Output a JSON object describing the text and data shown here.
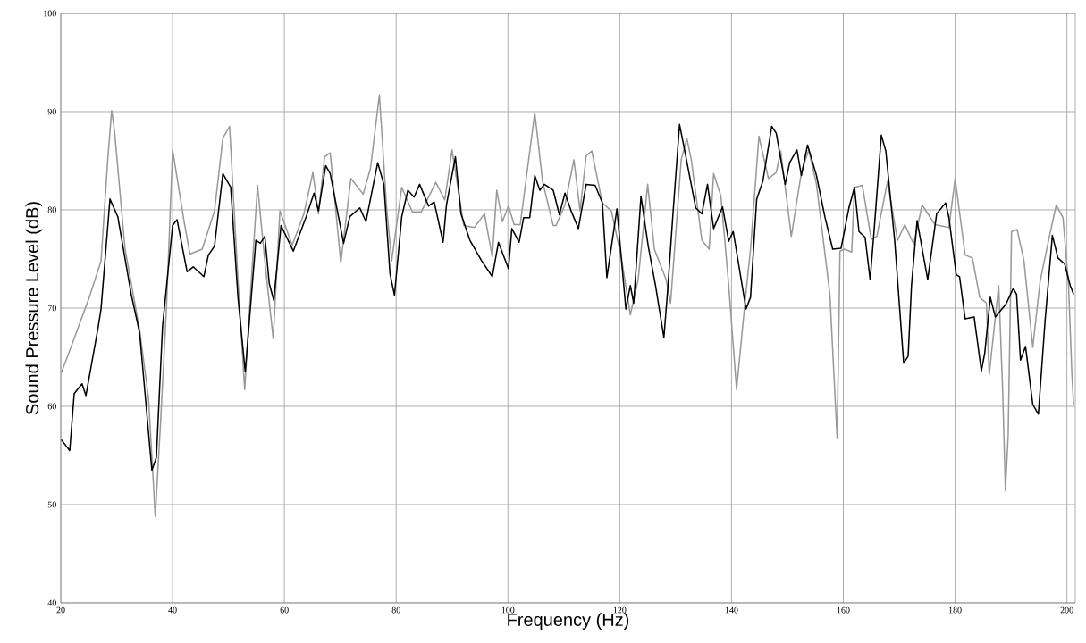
{
  "chart_data": {
    "type": "line",
    "xlabel": "Frequency (Hz)",
    "ylabel": "Sound Pressure Level (dB)",
    "xlim": [
      20,
      201.5
    ],
    "ylim": [
      40,
      100
    ],
    "xticks": [
      20,
      40,
      60,
      80,
      100,
      120,
      140,
      160,
      180,
      200
    ],
    "yticks": [
      40,
      50,
      60,
      70,
      80,
      90,
      100
    ],
    "grid": true,
    "series": [
      {
        "color": "#999999",
        "x": [
          20.1,
          22.4,
          25.1,
          27.2,
          28.4,
          29.1,
          29.6,
          31.5,
          34.1,
          35.7,
          36.9,
          37.8,
          38.9,
          40.0,
          42.1,
          43.1,
          45.3,
          47.5,
          49.0,
          50.2,
          51.7,
          52.9,
          54.1,
          55.2,
          56.5,
          58.0,
          59.2,
          61.4,
          63.5,
          65.1,
          66.1,
          67.2,
          68.2,
          70.1,
          71.9,
          74.1,
          75.4,
          77.0,
          78.3,
          79.2,
          81.0,
          82.9,
          84.5,
          87.1,
          88.7,
          90.0,
          92.1,
          94.0,
          95.8,
          97.2,
          98.0,
          99.0,
          100.1,
          101.1,
          102.2,
          104.8,
          106.2,
          108.1,
          108.6,
          110.2,
          111.8,
          112.9,
          114.0,
          115.0,
          116.9,
          118.5,
          120.3,
          121.9,
          123.3,
          125.0,
          126.2,
          128.3,
          129.1,
          131.0,
          132.0,
          132.8,
          134.7,
          136.0,
          136.8,
          138.1,
          139.5,
          140.9,
          142.4,
          143.4,
          144.9,
          146.6,
          148.0,
          148.8,
          150.7,
          152.5,
          153.8,
          155.2,
          157.6,
          158.9,
          159.4,
          160.2,
          161.5,
          162.0,
          163.4,
          165.0,
          166.0,
          167.9,
          169.7,
          171.0,
          172.6,
          174.1,
          176.4,
          178.9,
          180.0,
          181.8,
          183.1,
          184.4,
          185.6,
          186.1,
          187.8,
          188.5,
          189.0,
          189.5,
          190.1,
          191.1,
          192.3,
          193.9,
          195.2,
          196.8,
          198.1,
          199.3,
          200.3,
          200.9,
          201.2
        ],
        "values": [
          63.4,
          66.9,
          71.1,
          74.8,
          85.1,
          90.1,
          88.1,
          76.0,
          67.8,
          60.8,
          48.8,
          57.8,
          69.9,
          86.1,
          78.7,
          75.5,
          76.0,
          79.9,
          87.3,
          88.5,
          72.9,
          61.7,
          72.9,
          82.5,
          74.8,
          66.9,
          79.9,
          76.4,
          79.6,
          83.8,
          79.6,
          85.4,
          85.8,
          74.6,
          83.2,
          81.6,
          84.2,
          91.7,
          80.2,
          74.8,
          82.3,
          79.8,
          79.8,
          82.8,
          81.0,
          86.1,
          78.4,
          78.2,
          79.6,
          75.2,
          82.0,
          78.8,
          80.4,
          78.5,
          78.5,
          89.9,
          82.9,
          78.4,
          78.4,
          80.5,
          85.1,
          79.9,
          85.5,
          86.0,
          80.7,
          79.9,
          75.1,
          69.3,
          72.9,
          82.6,
          76.0,
          72.9,
          70.5,
          85.1,
          87.3,
          85.1,
          76.9,
          76.0,
          83.7,
          81.4,
          72.3,
          61.7,
          70.5,
          76.0,
          87.5,
          83.2,
          83.8,
          86.0,
          77.3,
          83.8,
          86.1,
          82.6,
          71.4,
          56.7,
          75.8,
          76.0,
          75.7,
          82.3,
          82.5,
          77.0,
          77.3,
          82.9,
          76.9,
          78.5,
          76.5,
          80.5,
          78.5,
          78.2,
          83.2,
          75.4,
          75.1,
          71.1,
          70.5,
          63.2,
          72.3,
          61.8,
          51.4,
          57.1,
          77.8,
          78.0,
          74.9,
          66.0,
          72.7,
          77.1,
          80.5,
          79.2,
          72.3,
          63.2,
          60.2
        ]
      },
      {
        "color": "#000000",
        "x": [
          20.1,
          21.6,
          22.4,
          23.8,
          24.5,
          26.7,
          27.2,
          28.8,
          30.2,
          32.6,
          34.1,
          36.3,
          37.1,
          38.2,
          40.0,
          40.8,
          42.6,
          43.7,
          45.6,
          46.4,
          47.5,
          49.0,
          50.4,
          51.7,
          53.0,
          54.9,
          55.7,
          56.5,
          57.3,
          58.1,
          59.4,
          61.6,
          63.9,
          65.3,
          66.1,
          67.4,
          68.2,
          70.6,
          71.7,
          73.5,
          74.6,
          76.7,
          77.8,
          78.9,
          79.7,
          81.0,
          82.1,
          83.2,
          84.2,
          85.8,
          86.8,
          88.4,
          89.0,
          90.6,
          91.6,
          93.2,
          95.3,
          97.2,
          98.3,
          100.1,
          100.7,
          102.0,
          102.8,
          103.9,
          104.8,
          105.7,
          106.5,
          108.1,
          109.2,
          110.2,
          111.3,
          112.6,
          114.0,
          115.6,
          116.9,
          117.7,
          119.5,
          121.1,
          121.9,
          122.5,
          123.8,
          125.1,
          126.4,
          127.9,
          128.6,
          129.6,
          130.7,
          131.7,
          133.6,
          134.7,
          135.7,
          136.8,
          138.4,
          139.5,
          140.3,
          142.6,
          143.4,
          144.5,
          145.6,
          147.2,
          148.0,
          149.6,
          150.4,
          151.7,
          152.5,
          153.6,
          155.2,
          156.7,
          158.1,
          159.6,
          161.0,
          162.0,
          162.8,
          163.9,
          164.8,
          165.5,
          166.8,
          167.6,
          169.2,
          170.8,
          171.6,
          172.2,
          173.2,
          175.1,
          176.7,
          178.3,
          178.9,
          180.2,
          180.8,
          181.8,
          183.4,
          184.7,
          185.3,
          186.3,
          187.2,
          189.1,
          190.4,
          191.0,
          191.7,
          192.6,
          193.9,
          194.9,
          196.1,
          197.4,
          198.4,
          199.6,
          200.6,
          201.2
        ],
        "values": [
          56.6,
          55.5,
          61.3,
          62.3,
          61.1,
          68.1,
          69.9,
          81.1,
          79.3,
          71.4,
          67.5,
          53.5,
          54.8,
          68.1,
          78.4,
          79.0,
          73.7,
          74.2,
          73.2,
          75.4,
          76.3,
          83.7,
          82.3,
          71.1,
          63.5,
          76.9,
          76.6,
          77.3,
          72.5,
          70.8,
          78.4,
          75.8,
          79.3,
          81.7,
          79.9,
          84.5,
          83.7,
          76.6,
          79.3,
          80.2,
          78.8,
          84.8,
          82.6,
          73.5,
          71.3,
          79.3,
          82.0,
          81.3,
          82.6,
          80.4,
          80.8,
          76.7,
          80.5,
          85.4,
          79.6,
          76.9,
          74.8,
          73.2,
          76.7,
          74.0,
          78.1,
          76.7,
          79.2,
          79.2,
          83.5,
          82.0,
          82.6,
          82.0,
          79.5,
          81.7,
          79.9,
          78.1,
          82.6,
          82.5,
          80.7,
          73.1,
          80.1,
          69.9,
          72.3,
          70.5,
          81.4,
          76.3,
          72.3,
          67.0,
          72.0,
          80.2,
          88.7,
          85.8,
          80.2,
          79.6,
          82.6,
          78.1,
          80.3,
          76.8,
          77.8,
          69.9,
          71.1,
          81.1,
          82.9,
          88.5,
          87.8,
          82.6,
          84.8,
          86.1,
          83.5,
          86.6,
          83.5,
          79.3,
          76.0,
          76.1,
          80.2,
          82.3,
          77.8,
          77.2,
          72.9,
          77.8,
          87.6,
          86.0,
          76.8,
          64.4,
          65.1,
          72.3,
          78.9,
          72.9,
          79.6,
          80.7,
          79.2,
          73.4,
          73.2,
          68.9,
          69.1,
          63.6,
          65.4,
          71.1,
          69.1,
          70.4,
          72.0,
          71.4,
          64.7,
          66.1,
          60.2,
          59.2,
          68.7,
          77.4,
          75.1,
          74.5,
          72.3,
          71.4
        ]
      }
    ]
  }
}
